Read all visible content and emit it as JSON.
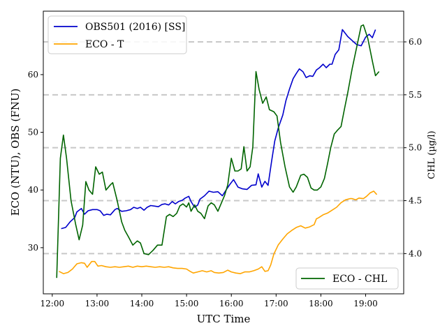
{
  "chart_data": {
    "type": "line",
    "xlabel": "UTC Time",
    "ylabel_left": "ECO (NTU), OBS (FNU)",
    "ylabel_right": "CHL ($\\mu g/l$)",
    "ylabel_right_display": "CHL (µg/l)",
    "x_range_hours": [
      11.8,
      19.85
    ],
    "ylim_left": [
      22,
      71
    ],
    "ylim_right": [
      3.62,
      6.29
    ],
    "x_ticks": [
      {
        "value": 12,
        "label": "12:00"
      },
      {
        "value": 13,
        "label": "13:00"
      },
      {
        "value": 14,
        "label": "14:00"
      },
      {
        "value": 15,
        "label": "15:00"
      },
      {
        "value": 16,
        "label": "16:00"
      },
      {
        "value": 17,
        "label": "17:00"
      },
      {
        "value": 18,
        "label": "18:00"
      },
      {
        "value": 19,
        "label": "19:00"
      }
    ],
    "y_left_ticks": [
      {
        "value": 30,
        "label": "30"
      },
      {
        "value": 40,
        "label": "40"
      },
      {
        "value": 50,
        "label": "50"
      },
      {
        "value": 60,
        "label": "60"
      }
    ],
    "y_right_ticks": [
      {
        "value": 4.0,
        "label": "4.0"
      },
      {
        "value": 4.5,
        "label": "4.5"
      },
      {
        "value": 5.0,
        "label": "5.0"
      },
      {
        "value": 5.5,
        "label": "5.5"
      },
      {
        "value": 6.0,
        "label": "6.0"
      }
    ],
    "grid": "dashed horizontal lines at right-axis ticks",
    "series": [
      {
        "name": "OBS501 (2016) [SS]",
        "axis": "left",
        "color": "#0000cc",
        "points": [
          [
            12.2,
            33.3
          ],
          [
            12.3,
            33.5
          ],
          [
            12.4,
            34.5
          ],
          [
            12.5,
            35.2
          ],
          [
            12.55,
            36.2
          ],
          [
            12.65,
            36.8
          ],
          [
            12.72,
            35.8
          ],
          [
            12.8,
            36.4
          ],
          [
            12.9,
            36.6
          ],
          [
            13.0,
            36.6
          ],
          [
            13.07,
            36.4
          ],
          [
            13.15,
            35.6
          ],
          [
            13.22,
            35.8
          ],
          [
            13.3,
            35.7
          ],
          [
            13.4,
            36.6
          ],
          [
            13.45,
            36.8
          ],
          [
            13.55,
            36.3
          ],
          [
            13.65,
            36.4
          ],
          [
            13.75,
            36.6
          ],
          [
            13.82,
            37.0
          ],
          [
            13.9,
            36.8
          ],
          [
            13.97,
            37.0
          ],
          [
            14.05,
            36.5
          ],
          [
            14.12,
            37.0
          ],
          [
            14.2,
            37.3
          ],
          [
            14.3,
            37.2
          ],
          [
            14.37,
            37.1
          ],
          [
            14.45,
            37.5
          ],
          [
            14.52,
            37.6
          ],
          [
            14.6,
            37.4
          ],
          [
            14.68,
            38.0
          ],
          [
            14.75,
            37.6
          ],
          [
            14.82,
            38.0
          ],
          [
            14.9,
            38.2
          ],
          [
            14.97,
            38.6
          ],
          [
            15.05,
            38.9
          ],
          [
            15.1,
            38.0
          ],
          [
            15.18,
            37.0
          ],
          [
            15.25,
            37.4
          ],
          [
            15.3,
            38.4
          ],
          [
            15.4,
            39.0
          ],
          [
            15.5,
            39.8
          ],
          [
            15.6,
            39.6
          ],
          [
            15.7,
            39.7
          ],
          [
            15.8,
            39.0
          ],
          [
            15.9,
            40.2
          ],
          [
            15.97,
            41.0
          ],
          [
            16.05,
            41.8
          ],
          [
            16.15,
            40.5
          ],
          [
            16.25,
            40.2
          ],
          [
            16.35,
            40.1
          ],
          [
            16.45,
            40.8
          ],
          [
            16.55,
            40.9
          ],
          [
            16.6,
            42.8
          ],
          [
            16.68,
            40.5
          ],
          [
            16.75,
            41.5
          ],
          [
            16.82,
            40.8
          ],
          [
            16.9,
            45.0
          ],
          [
            16.97,
            48.5
          ],
          [
            17.05,
            50.8
          ],
          [
            17.15,
            53.0
          ],
          [
            17.22,
            55.5
          ],
          [
            17.3,
            57.5
          ],
          [
            17.38,
            59.3
          ],
          [
            17.45,
            60.2
          ],
          [
            17.52,
            61.0
          ],
          [
            17.6,
            60.5
          ],
          [
            17.67,
            59.5
          ],
          [
            17.75,
            59.8
          ],
          [
            17.82,
            59.7
          ],
          [
            17.9,
            60.8
          ],
          [
            17.97,
            61.2
          ],
          [
            18.05,
            61.8
          ],
          [
            18.12,
            61.2
          ],
          [
            18.2,
            61.8
          ],
          [
            18.25,
            61.8
          ],
          [
            18.32,
            63.5
          ],
          [
            18.4,
            64.3
          ],
          [
            18.48,
            67.8
          ],
          [
            18.6,
            66.6
          ],
          [
            18.7,
            65.9
          ],
          [
            18.8,
            65.2
          ],
          [
            18.9,
            65.0
          ],
          [
            19.0,
            66.5
          ],
          [
            19.08,
            67.0
          ],
          [
            19.15,
            66.4
          ],
          [
            19.22,
            67.8
          ]
        ]
      },
      {
        "name": "ECO - T",
        "axis": "left",
        "color": "#ffa500",
        "points": [
          [
            12.15,
            25.9
          ],
          [
            12.25,
            25.5
          ],
          [
            12.35,
            25.7
          ],
          [
            12.45,
            26.3
          ],
          [
            12.55,
            27.2
          ],
          [
            12.65,
            27.4
          ],
          [
            12.72,
            27.3
          ],
          [
            12.78,
            26.6
          ],
          [
            12.88,
            27.6
          ],
          [
            12.95,
            27.6
          ],
          [
            13.02,
            26.8
          ],
          [
            13.1,
            26.9
          ],
          [
            13.2,
            26.7
          ],
          [
            13.3,
            26.6
          ],
          [
            13.4,
            26.7
          ],
          [
            13.5,
            26.6
          ],
          [
            13.6,
            26.7
          ],
          [
            13.7,
            26.8
          ],
          [
            13.8,
            26.6
          ],
          [
            13.9,
            26.8
          ],
          [
            14.0,
            26.7
          ],
          [
            14.1,
            26.8
          ],
          [
            14.2,
            26.7
          ],
          [
            14.3,
            26.6
          ],
          [
            14.4,
            26.7
          ],
          [
            14.5,
            26.6
          ],
          [
            14.6,
            26.7
          ],
          [
            14.7,
            26.5
          ],
          [
            14.8,
            26.4
          ],
          [
            14.9,
            26.4
          ],
          [
            15.0,
            26.3
          ],
          [
            15.08,
            25.9
          ],
          [
            15.15,
            25.6
          ],
          [
            15.25,
            25.8
          ],
          [
            15.35,
            26.0
          ],
          [
            15.45,
            25.8
          ],
          [
            15.55,
            26.0
          ],
          [
            15.62,
            25.7
          ],
          [
            15.72,
            25.6
          ],
          [
            15.82,
            25.7
          ],
          [
            15.92,
            26.1
          ],
          [
            16.0,
            25.8
          ],
          [
            16.1,
            25.6
          ],
          [
            16.2,
            25.5
          ],
          [
            16.3,
            25.8
          ],
          [
            16.4,
            25.8
          ],
          [
            16.5,
            26.0
          ],
          [
            16.6,
            26.3
          ],
          [
            16.68,
            26.7
          ],
          [
            16.75,
            25.9
          ],
          [
            16.82,
            26.0
          ],
          [
            16.88,
            27.0
          ],
          [
            16.95,
            28.9
          ],
          [
            17.05,
            30.5
          ],
          [
            17.15,
            31.5
          ],
          [
            17.25,
            32.4
          ],
          [
            17.35,
            33.0
          ],
          [
            17.45,
            33.5
          ],
          [
            17.55,
            33.8
          ],
          [
            17.65,
            33.4
          ],
          [
            17.75,
            33.6
          ],
          [
            17.85,
            34.0
          ],
          [
            17.9,
            35.0
          ],
          [
            17.95,
            35.2
          ],
          [
            18.05,
            35.7
          ],
          [
            18.15,
            36.0
          ],
          [
            18.25,
            36.5
          ],
          [
            18.35,
            37.0
          ],
          [
            18.45,
            37.8
          ],
          [
            18.55,
            38.3
          ],
          [
            18.65,
            38.5
          ],
          [
            18.7,
            38.5
          ],
          [
            18.78,
            38.3
          ],
          [
            18.85,
            38.6
          ],
          [
            18.95,
            38.5
          ],
          [
            19.02,
            38.9
          ],
          [
            19.1,
            39.5
          ],
          [
            19.18,
            39.8
          ],
          [
            19.25,
            39.2
          ]
        ]
      },
      {
        "name": "ECO - CHL",
        "axis": "right",
        "color": "#006400",
        "points": [
          [
            12.1,
            3.77
          ],
          [
            12.18,
            4.9
          ],
          [
            12.25,
            5.12
          ],
          [
            12.32,
            4.9
          ],
          [
            12.42,
            4.5
          ],
          [
            12.52,
            4.28
          ],
          [
            12.6,
            4.13
          ],
          [
            12.68,
            4.27
          ],
          [
            12.75,
            4.68
          ],
          [
            12.82,
            4.6
          ],
          [
            12.9,
            4.56
          ],
          [
            12.97,
            4.82
          ],
          [
            13.05,
            4.75
          ],
          [
            13.12,
            4.77
          ],
          [
            13.2,
            4.6
          ],
          [
            13.3,
            4.65
          ],
          [
            13.35,
            4.67
          ],
          [
            13.45,
            4.5
          ],
          [
            13.55,
            4.3
          ],
          [
            13.62,
            4.22
          ],
          [
            13.7,
            4.16
          ],
          [
            13.8,
            4.08
          ],
          [
            13.9,
            4.12
          ],
          [
            13.97,
            4.1
          ],
          [
            14.05,
            4.0
          ],
          [
            14.15,
            3.99
          ],
          [
            14.25,
            4.03
          ],
          [
            14.35,
            4.08
          ],
          [
            14.45,
            4.08
          ],
          [
            14.55,
            4.35
          ],
          [
            14.62,
            4.37
          ],
          [
            14.7,
            4.35
          ],
          [
            14.78,
            4.38
          ],
          [
            14.85,
            4.45
          ],
          [
            14.92,
            4.47
          ],
          [
            15.0,
            4.44
          ],
          [
            15.05,
            4.48
          ],
          [
            15.1,
            4.4
          ],
          [
            15.18,
            4.46
          ],
          [
            15.25,
            4.4
          ],
          [
            15.32,
            4.38
          ],
          [
            15.4,
            4.33
          ],
          [
            15.48,
            4.45
          ],
          [
            15.55,
            4.48
          ],
          [
            15.62,
            4.46
          ],
          [
            15.7,
            4.4
          ],
          [
            15.78,
            4.48
          ],
          [
            15.85,
            4.55
          ],
          [
            15.92,
            4.65
          ],
          [
            16.0,
            4.9
          ],
          [
            16.08,
            4.78
          ],
          [
            16.15,
            4.78
          ],
          [
            16.22,
            4.8
          ],
          [
            16.28,
            5.01
          ],
          [
            16.35,
            4.78
          ],
          [
            16.42,
            4.82
          ],
          [
            16.48,
            5.01
          ],
          [
            16.55,
            5.72
          ],
          [
            16.62,
            5.55
          ],
          [
            16.7,
            5.42
          ],
          [
            16.78,
            5.48
          ],
          [
            16.85,
            5.36
          ],
          [
            16.95,
            5.34
          ],
          [
            17.02,
            5.3
          ],
          [
            17.1,
            5.05
          ],
          [
            17.2,
            4.82
          ],
          [
            17.3,
            4.63
          ],
          [
            17.38,
            4.58
          ],
          [
            17.45,
            4.63
          ],
          [
            17.55,
            4.74
          ],
          [
            17.62,
            4.75
          ],
          [
            17.7,
            4.72
          ],
          [
            17.78,
            4.62
          ],
          [
            17.85,
            4.6
          ],
          [
            17.92,
            4.6
          ],
          [
            18.0,
            4.63
          ],
          [
            18.08,
            4.71
          ],
          [
            18.15,
            4.85
          ],
          [
            18.22,
            5.0
          ],
          [
            18.3,
            5.13
          ],
          [
            18.38,
            5.17
          ],
          [
            18.45,
            5.2
          ],
          [
            18.52,
            5.35
          ],
          [
            18.6,
            5.52
          ],
          [
            18.7,
            5.75
          ],
          [
            18.8,
            5.95
          ],
          [
            18.9,
            6.15
          ],
          [
            18.95,
            6.16
          ],
          [
            19.05,
            6.03
          ],
          [
            19.15,
            5.82
          ],
          [
            19.22,
            5.68
          ],
          [
            19.3,
            5.72
          ]
        ]
      }
    ],
    "legends": [
      {
        "placement": "top-left",
        "entries": [
          "OBS501 (2016) [SS]",
          "ECO - T"
        ]
      },
      {
        "placement": "bottom-right",
        "entries": [
          "ECO - CHL"
        ]
      }
    ]
  }
}
